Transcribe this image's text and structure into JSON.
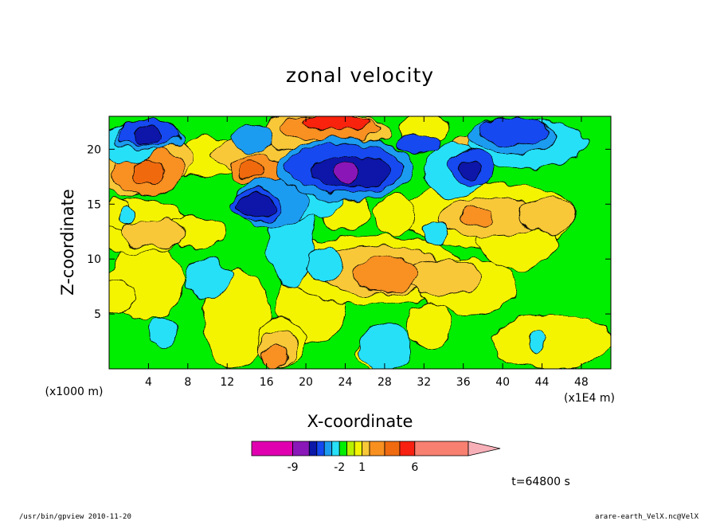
{
  "footer": {
    "left": "/usr/bin/gpview   2010-11-20",
    "right": "arare-earth_VelX.nc@VelX"
  },
  "time_label": "t=64800 s",
  "colors": {
    "magenta": "#e000b0",
    "purple": "#8a18b8",
    "navy": "#0c18a8",
    "blue": "#1448f0",
    "light_blue": "#1c9cf0",
    "cyan": "#28e0f8",
    "green": "#00ee00",
    "yellow_green": "#b8f000",
    "yellow": "#f4f400",
    "light_orange": "#f8c838",
    "orange": "#f89020",
    "dark_orange": "#f06a10",
    "red": "#f82010",
    "salmon": "#f88070",
    "pink": "#f8b0b8"
  },
  "chart_data": {
    "type": "contour",
    "title": "zonal velocity",
    "xlabel": "X-coordinate",
    "ylabel": "Z-coordinate",
    "x_unit": "(x1E4 m)",
    "y_unit": "(x1000 m)",
    "xlim": [
      0,
      51
    ],
    "ylim": [
      0,
      23
    ],
    "xticks": [
      4,
      8,
      12,
      16,
      20,
      24,
      28,
      32,
      36,
      40,
      44,
      48
    ],
    "yticks": [
      5,
      10,
      15,
      20
    ],
    "colorbar": {
      "levels": [
        -15,
        -9,
        -6,
        -5,
        -4,
        -3,
        -2,
        -1,
        0,
        1,
        2,
        3,
        4,
        6,
        8,
        15
      ],
      "tick_labels": [
        {
          "label": "-9",
          "value": -9
        },
        {
          "label": "-2",
          "value": -2
        },
        {
          "label": "1",
          "value": 1
        },
        {
          "label": "6",
          "value": 6
        }
      ]
    },
    "features": [
      {
        "x": 4,
        "z": 17.8,
        "value": 6,
        "desc": "easterly-to-westerly jet core, orange/red"
      },
      {
        "x": 24,
        "z": 17.8,
        "value": -9,
        "desc": "strong negative core, purple"
      },
      {
        "x": 15,
        "z": 14.8,
        "value": -6,
        "desc": "negative core, navy"
      },
      {
        "x": 28,
        "z": 8.5,
        "value": 3,
        "desc": "positive region, orange"
      },
      {
        "x": 36,
        "z": 18,
        "value": -5,
        "desc": "negative core, blue"
      },
      {
        "x": 22,
        "z": 22.5,
        "value": 6,
        "desc": "upper positive band, red"
      }
    ]
  }
}
